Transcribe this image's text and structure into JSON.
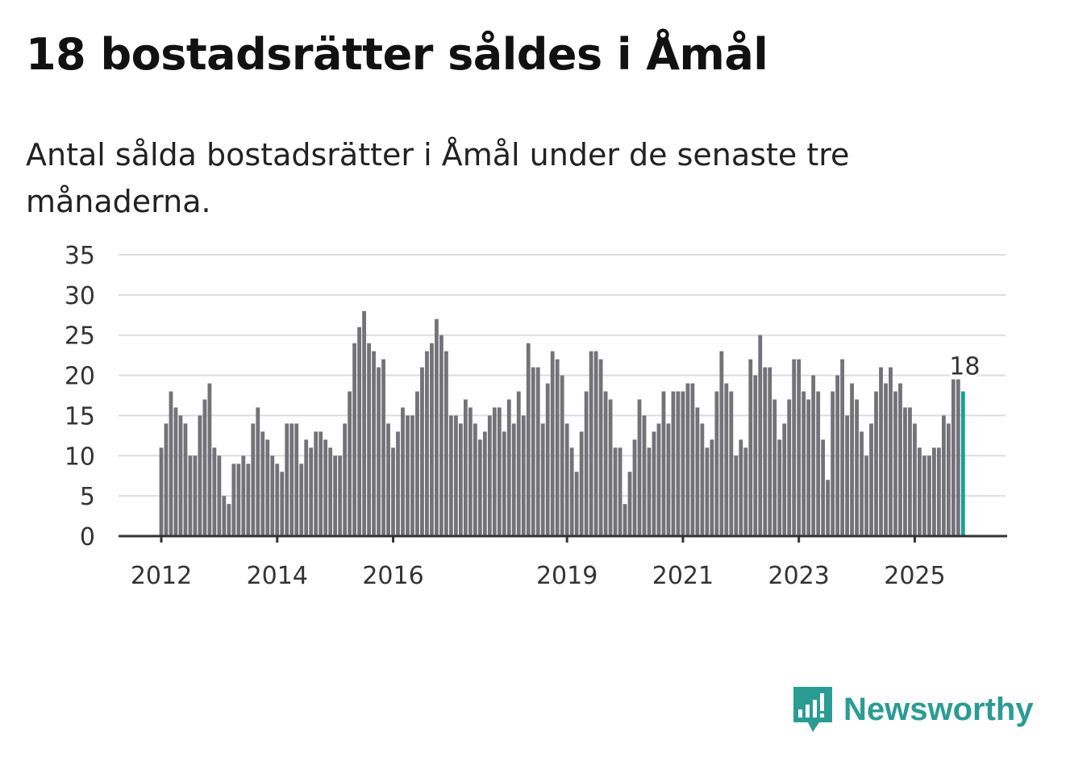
{
  "header": {
    "title": "18 bostadsrätter såldes i Åmål",
    "subtitle": "Antal sålda bostadsrätter i Åmål under de senaste tre månaderna."
  },
  "brand": {
    "name": "Newsworthy",
    "color": "#2b9c93"
  },
  "colors": {
    "bar": "#737277",
    "highlight": "#1a9e96",
    "grid": "#dddddd",
    "axis": "#333333"
  },
  "chart_data": {
    "type": "bar",
    "title": "Antal sålda bostadsrätter i Åmål under de senaste tre månaderna.",
    "xlabel": "",
    "ylabel": "",
    "ylim": [
      0,
      35
    ],
    "yticks": [
      0,
      5,
      10,
      15,
      20,
      25,
      30,
      35
    ],
    "xticks": [
      {
        "label": "2012",
        "index": 0
      },
      {
        "label": "2014",
        "index": 24
      },
      {
        "label": "2016",
        "index": 48
      },
      {
        "label": "2019",
        "index": 84
      },
      {
        "label": "2021",
        "index": 108
      },
      {
        "label": "2023",
        "index": 132
      },
      {
        "label": "2025",
        "index": 156
      }
    ],
    "start": "2012-01",
    "grid": true,
    "values": [
      11,
      14,
      18,
      16,
      15,
      14,
      10,
      10,
      15,
      17,
      19,
      11,
      10,
      5,
      4,
      9,
      9,
      10,
      9,
      14,
      16,
      13,
      12,
      10,
      9,
      8,
      14,
      14,
      14,
      9,
      12,
      11,
      13,
      13,
      12,
      11,
      10,
      10,
      14,
      18,
      24,
      26,
      28,
      24,
      23,
      21,
      22,
      14,
      11,
      13,
      16,
      15,
      15,
      18,
      21,
      23,
      24,
      27,
      25,
      23,
      15,
      15,
      14,
      17,
      16,
      14,
      12,
      13,
      15,
      16,
      16,
      13,
      17,
      14,
      18,
      15,
      24,
      21,
      21,
      14,
      19,
      23,
      22,
      20,
      14,
      11,
      8,
      13,
      18,
      23,
      23,
      22,
      18,
      17,
      11,
      11,
      4,
      8,
      12,
      17,
      15,
      11,
      13,
      14,
      18,
      14,
      18,
      18,
      18,
      19,
      19,
      16,
      14,
      11,
      12,
      18,
      23,
      19,
      18,
      10,
      12,
      11,
      22,
      20,
      25,
      21,
      21,
      17,
      12,
      14,
      17,
      22,
      22,
      18,
      17,
      20,
      18,
      12,
      7,
      18,
      20,
      22,
      15,
      19,
      17,
      13,
      10,
      14,
      18,
      21,
      19,
      21,
      18,
      19,
      16,
      16,
      14,
      11,
      10,
      10,
      11,
      11,
      15,
      14,
      19.5,
      19.5,
      18
    ],
    "highlight_label": "18"
  }
}
